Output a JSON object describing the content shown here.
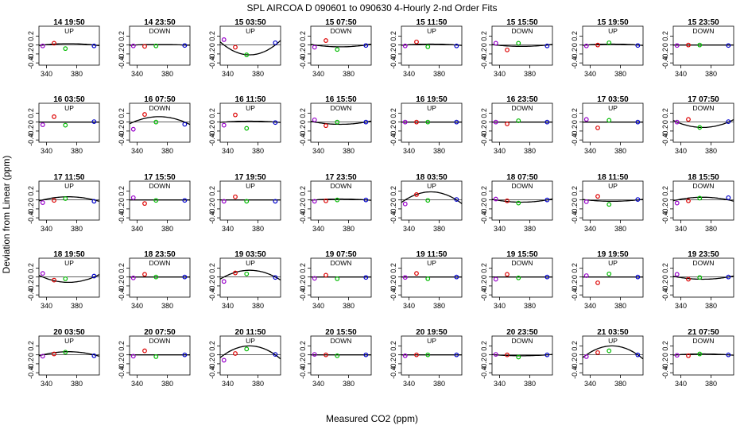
{
  "title": "SPL   AIRCOA D   090601 to 090630   4-Hourly 2-nd Order Fits",
  "chart_data": {
    "type": "scatter",
    "title": "SPL   AIRCOA D   090601 to 090630   4-Hourly 2-nd Order Fits",
    "xlabel": "Measured CO2 (ppm)",
    "ylabel": "Deviation from Linear (ppm)",
    "xlim": [
      330,
      410
    ],
    "ylim": [
      -0.45,
      0.42
    ],
    "x_ticks": [
      340,
      380
    ],
    "y_ticks": [
      -0.4,
      -0.2,
      0.0,
      0.2
    ],
    "x_tick_labels": [
      "340",
      "380"
    ],
    "y_tick_labels": [
      "-0.4",
      "-0.2",
      "0",
      "0.2"
    ],
    "grid": false,
    "standards_x": [
      335,
      350,
      365,
      403
    ],
    "standard_colors": [
      "#9900cc",
      "#dd0000",
      "#00bb00",
      "#0000cc"
    ],
    "panels": [
      {
        "title": "14 19:50",
        "direction": "UP",
        "points": [
          -0.02,
          0.04,
          -0.08,
          -0.02
        ],
        "curve": [
          0,
          0.03
        ]
      },
      {
        "title": "14 23:50",
        "direction": "DOWN",
        "points": [
          -0.02,
          -0.03,
          -0.02,
          -0.01
        ],
        "curve": [
          0,
          0.01
        ]
      },
      {
        "title": "15 03:50",
        "direction": "UP",
        "points": [
          0.12,
          -0.05,
          -0.22,
          0.05
        ],
        "curve": [
          0,
          -0.22
        ]
      },
      {
        "title": "15 07:50",
        "direction": "DOWN",
        "points": [
          -0.05,
          0.1,
          -0.1,
          -0.01
        ],
        "curve": [
          0,
          -0.04
        ]
      },
      {
        "title": "15 11:50",
        "direction": "UP",
        "points": [
          -0.02,
          0.07,
          -0.04,
          -0.02
        ],
        "curve": [
          0,
          0.02
        ]
      },
      {
        "title": "15 15:50",
        "direction": "DOWN",
        "points": [
          0.04,
          -0.11,
          0.04,
          -0.02
        ],
        "curve": [
          0,
          -0.03
        ]
      },
      {
        "title": "15 19:50",
        "direction": "UP",
        "points": [
          -0.02,
          0.0,
          0.05,
          -0.01
        ],
        "curve": [
          0,
          0.02
        ]
      },
      {
        "title": "15 23:50",
        "direction": "DOWN",
        "points": [
          -0.01,
          0.0,
          0.0,
          -0.01
        ],
        "curve": [
          0,
          0.0
        ]
      },
      {
        "title": "16 03:50",
        "direction": "UP",
        "points": [
          -0.06,
          0.12,
          -0.07,
          0.01
        ],
        "curve": [
          0,
          0.0
        ]
      },
      {
        "title": "16 07:50",
        "direction": "DOWN",
        "points": [
          -0.16,
          0.17,
          0.0,
          -0.05
        ],
        "curve": [
          0,
          0.12
        ]
      },
      {
        "title": "16 11:50",
        "direction": "UP",
        "points": [
          -0.07,
          0.16,
          -0.14,
          -0.01
        ],
        "curve": [
          0,
          0.02
        ]
      },
      {
        "title": "16 15:50",
        "direction": "DOWN",
        "points": [
          0.05,
          -0.08,
          0.0,
          0.0
        ],
        "curve": [
          0,
          -0.05
        ]
      },
      {
        "title": "16 19:50",
        "direction": "UP",
        "points": [
          0.0,
          0.0,
          0.0,
          0.0
        ],
        "curve": [
          0,
          0.0
        ]
      },
      {
        "title": "16 23:50",
        "direction": "DOWN",
        "points": [
          0.0,
          -0.04,
          0.03,
          0.0
        ],
        "curve": [
          0,
          0.0
        ]
      },
      {
        "title": "17 03:50",
        "direction": "UP",
        "points": [
          0.06,
          -0.13,
          0.04,
          0.0
        ],
        "curve": [
          0,
          0.0
        ]
      },
      {
        "title": "17 07:50",
        "direction": "DOWN",
        "points": [
          0.0,
          0.06,
          -0.12,
          0.01
        ],
        "curve": [
          0,
          -0.12
        ]
      },
      {
        "title": "17 11:50",
        "direction": "UP",
        "points": [
          -0.06,
          -0.01,
          0.03,
          -0.03
        ],
        "curve": [
          0,
          0.07
        ]
      },
      {
        "title": "17 15:50",
        "direction": "DOWN",
        "points": [
          0.05,
          -0.08,
          -0.01,
          -0.01
        ],
        "curve": [
          0,
          0.0
        ]
      },
      {
        "title": "17 19:50",
        "direction": "UP",
        "points": [
          -0.03,
          0.07,
          -0.03,
          -0.03
        ],
        "curve": [
          0,
          0.0
        ]
      },
      {
        "title": "17 23:50",
        "direction": "DOWN",
        "points": [
          -0.03,
          -0.02,
          0.0,
          0.0
        ],
        "curve": [
          0,
          0.02
        ]
      },
      {
        "title": "18 03:50",
        "direction": "UP",
        "points": [
          -0.09,
          0.12,
          -0.01,
          0.01
        ],
        "curve": [
          0,
          0.18
        ]
      },
      {
        "title": "18 07:50",
        "direction": "DOWN",
        "points": [
          0.02,
          -0.02,
          -0.07,
          0.0
        ],
        "curve": [
          0,
          -0.05
        ]
      },
      {
        "title": "18 11:50",
        "direction": "UP",
        "points": [
          -0.04,
          0.08,
          -0.1,
          0.01
        ],
        "curve": [
          0,
          -0.03
        ]
      },
      {
        "title": "18 15:50",
        "direction": "DOWN",
        "points": [
          -0.07,
          -0.02,
          0.04,
          0.05
        ],
        "curve": [
          0,
          0.06
        ]
      },
      {
        "title": "18 19:50",
        "direction": "UP",
        "points": [
          0.08,
          -0.07,
          -0.04,
          0.02
        ],
        "curve": [
          0,
          -0.12
        ]
      },
      {
        "title": "18 23:50",
        "direction": "DOWN",
        "points": [
          -0.02,
          0.06,
          0.0,
          0.0
        ],
        "curve": [
          0,
          0.0
        ]
      },
      {
        "title": "19 03:50",
        "direction": "UP",
        "points": [
          -0.1,
          0.09,
          0.07,
          -0.01
        ],
        "curve": [
          0,
          0.15
        ]
      },
      {
        "title": "19 07:50",
        "direction": "DOWN",
        "points": [
          -0.03,
          0.04,
          -0.04,
          -0.01
        ],
        "curve": [
          0,
          0.0
        ]
      },
      {
        "title": "19 11:50",
        "direction": "UP",
        "points": [
          -0.01,
          0.08,
          -0.04,
          0.0
        ],
        "curve": [
          0,
          0.0
        ]
      },
      {
        "title": "19 15:50",
        "direction": "DOWN",
        "points": [
          -0.05,
          0.06,
          -0.02,
          0.0
        ],
        "curve": [
          0,
          0.0
        ]
      },
      {
        "title": "19 19:50",
        "direction": "UP",
        "points": [
          0.03,
          -0.13,
          0.07,
          0.0
        ],
        "curve": [
          0,
          0.0
        ]
      },
      {
        "title": "19 23:50",
        "direction": "DOWN",
        "points": [
          0.06,
          -0.05,
          -0.01,
          0.0
        ],
        "curve": [
          0,
          -0.05
        ]
      },
      {
        "title": "20 03:50",
        "direction": "UP",
        "points": [
          -0.03,
          0.02,
          0.06,
          -0.02
        ],
        "curve": [
          0,
          0.07
        ]
      },
      {
        "title": "20 07:50",
        "direction": "DOWN",
        "points": [
          -0.03,
          0.09,
          -0.04,
          0.0
        ],
        "curve": [
          0,
          0.0
        ]
      },
      {
        "title": "20 11:50",
        "direction": "UP",
        "points": [
          -0.12,
          0.03,
          0.13,
          0.01
        ],
        "curve": [
          0,
          0.2
        ]
      },
      {
        "title": "20 15:50",
        "direction": "DOWN",
        "points": [
          0.01,
          0.0,
          -0.02,
          0.0
        ],
        "curve": [
          0,
          0.0
        ]
      },
      {
        "title": "20 19:50",
        "direction": "UP",
        "points": [
          -0.02,
          0.0,
          0.0,
          0.0
        ],
        "curve": [
          0,
          0.0
        ]
      },
      {
        "title": "20 23:50",
        "direction": "DOWN",
        "points": [
          0.01,
          0.0,
          -0.05,
          0.0
        ],
        "curve": [
          0,
          -0.02
        ]
      },
      {
        "title": "21 03:50",
        "direction": "UP",
        "points": [
          -0.04,
          0.05,
          0.09,
          0.0
        ],
        "curve": [
          0,
          0.2
        ]
      },
      {
        "title": "21 07:50",
        "direction": "DOWN",
        "points": [
          -0.01,
          -0.02,
          0.02,
          0.0
        ],
        "curve": [
          0,
          0.02
        ]
      }
    ]
  }
}
